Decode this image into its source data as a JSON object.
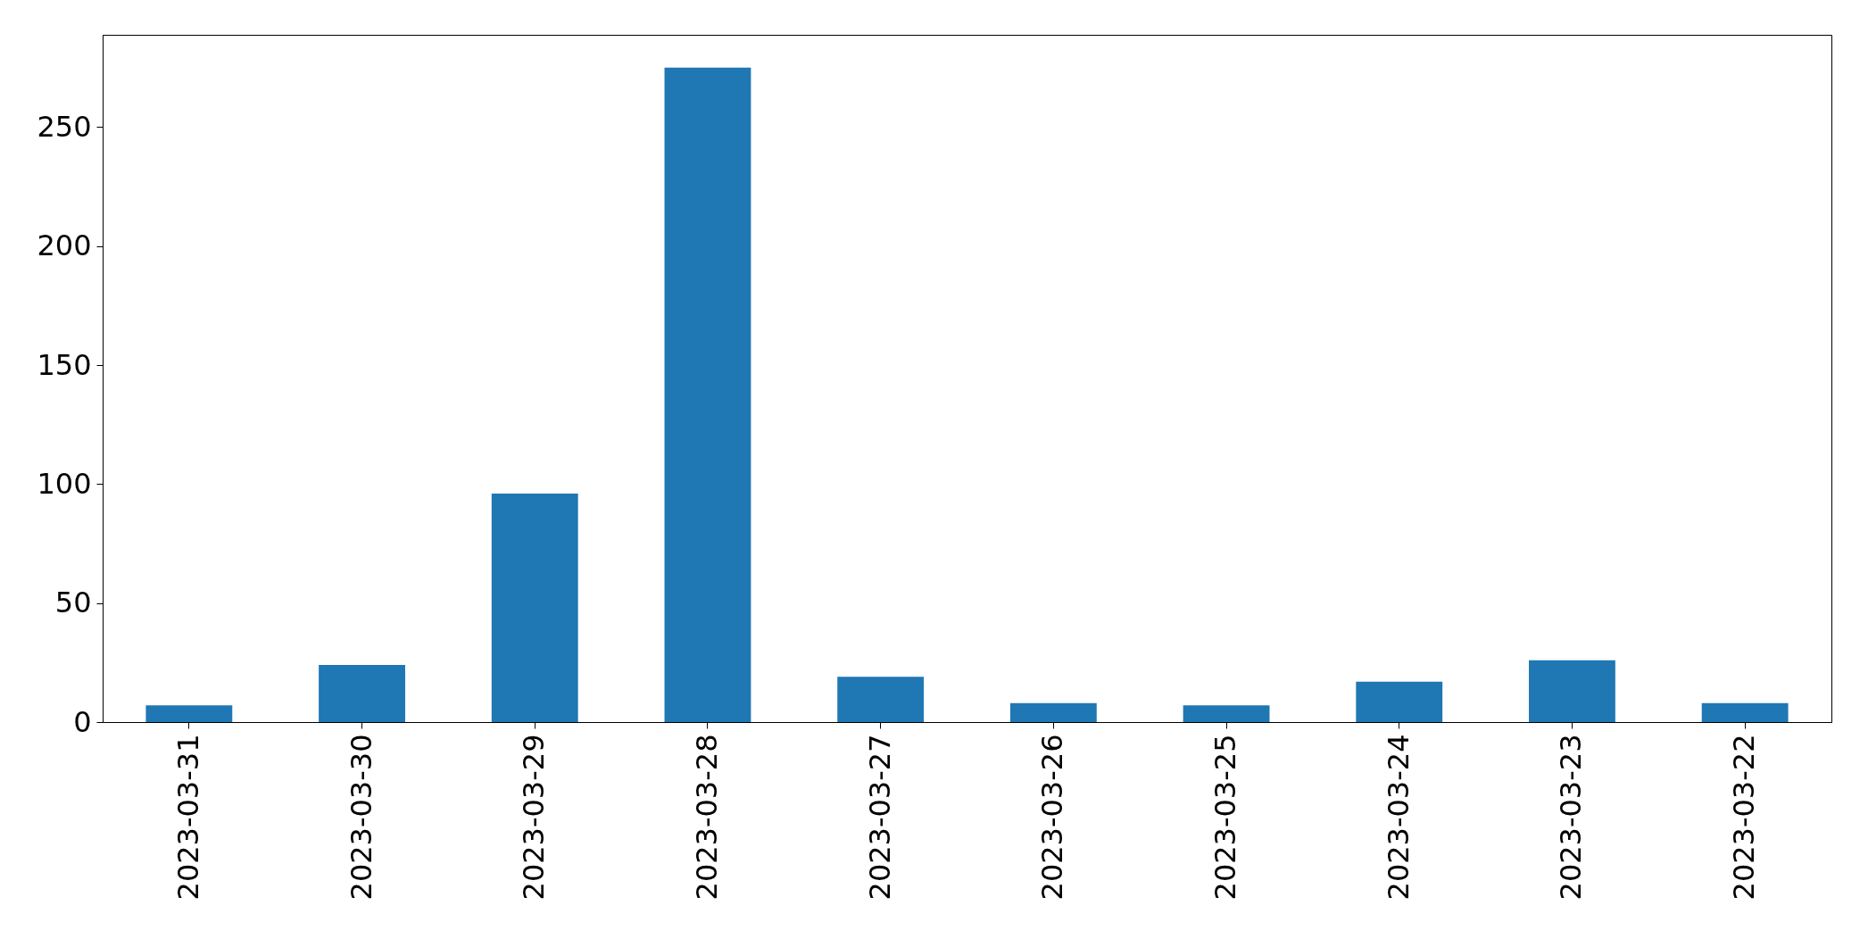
{
  "chart_data": {
    "type": "bar",
    "categories": [
      "2023-03-31",
      "2023-03-30",
      "2023-03-29",
      "2023-03-28",
      "2023-03-27",
      "2023-03-26",
      "2023-03-25",
      "2023-03-24",
      "2023-03-23",
      "2023-03-22"
    ],
    "values": [
      7,
      24,
      96,
      275,
      19,
      8,
      7,
      17,
      26,
      8
    ],
    "color": "#1f77b4",
    "ylim": [
      0,
      288.75
    ],
    "yticks": [
      0,
      50,
      100,
      150,
      200,
      250
    ],
    "grid": false
  }
}
